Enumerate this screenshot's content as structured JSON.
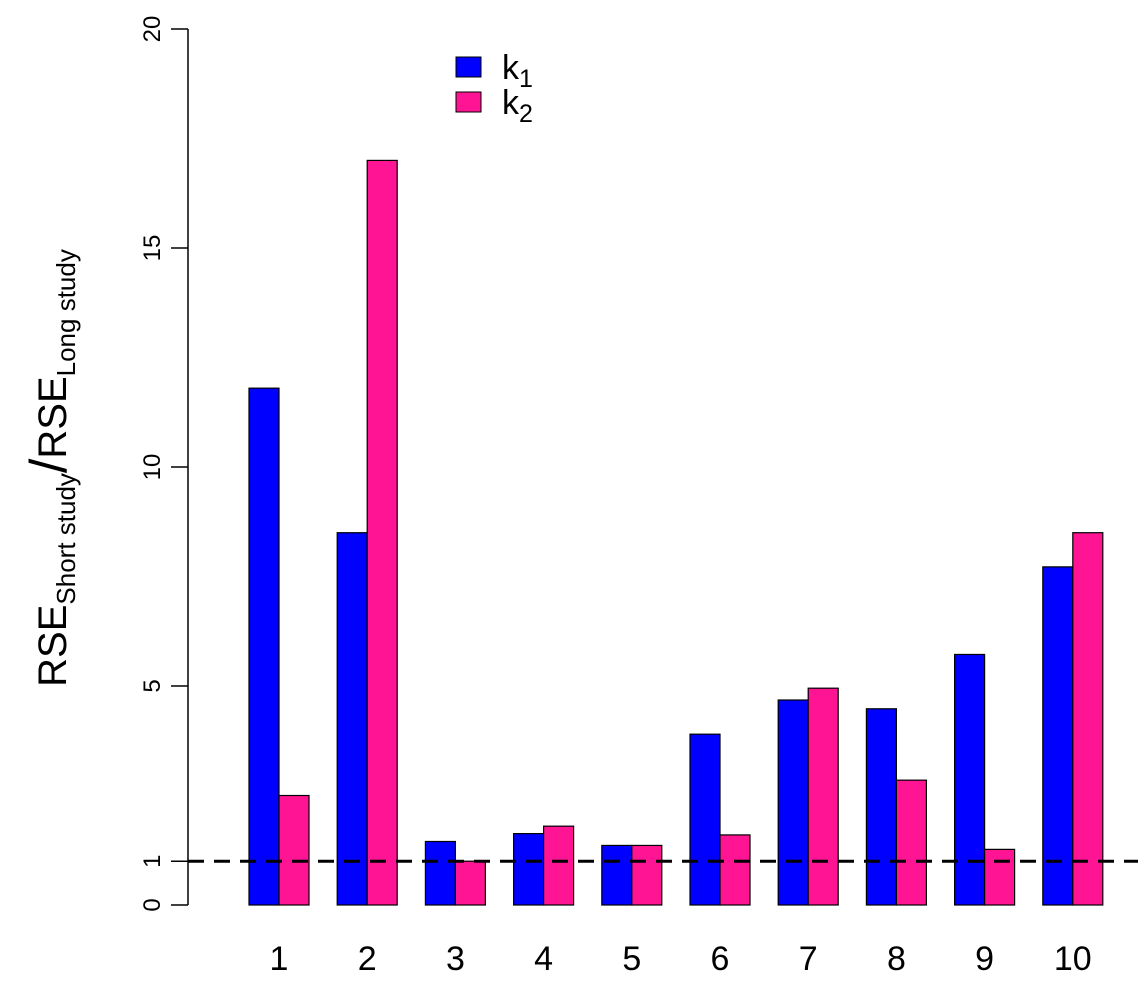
{
  "chart_data": {
    "type": "bar",
    "categories": [
      "1",
      "2",
      "3",
      "4",
      "5",
      "6",
      "7",
      "8",
      "9",
      "10"
    ],
    "series": [
      {
        "name": "k1",
        "color": "#0000ff",
        "values": [
          11.8,
          8.5,
          1.45,
          1.63,
          1.36,
          3.9,
          4.68,
          4.48,
          5.72,
          7.72
        ]
      },
      {
        "name": "k2",
        "color": "#ff1493",
        "values": [
          2.5,
          17.0,
          1.0,
          1.8,
          1.36,
          1.6,
          4.95,
          2.85,
          1.27,
          8.5
        ]
      }
    ],
    "legend": {
      "placement": "top-center",
      "entries": [
        {
          "main": "k",
          "sub": "1"
        },
        {
          "main": "k",
          "sub": "2"
        }
      ]
    },
    "ylabel": {
      "numerator_main": "RSE",
      "numerator_sub": "Short study",
      "separator": "/",
      "denominator_main": "RSE",
      "denominator_sub": "Long study"
    },
    "yticks": [
      0,
      1,
      5,
      10,
      15,
      20
    ],
    "ylim": [
      0,
      20
    ],
    "reference_line": {
      "y": 1,
      "style": "dashed",
      "color": "#000000"
    },
    "grid": false
  }
}
